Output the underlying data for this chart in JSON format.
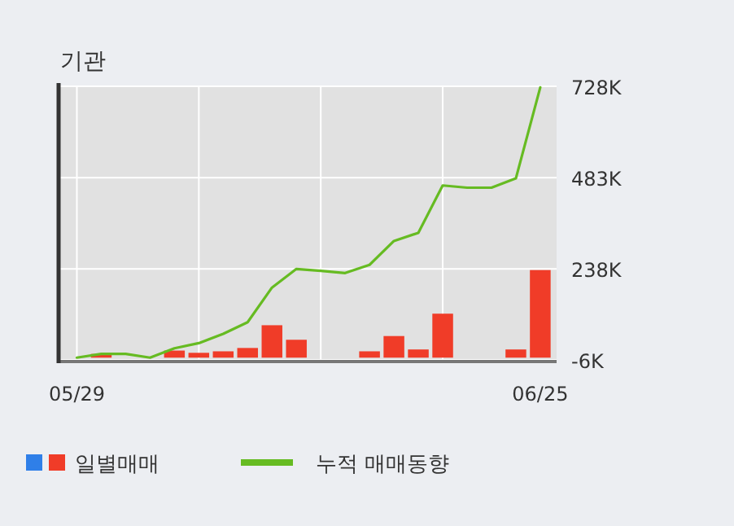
{
  "chart_data": {
    "type": "bar",
    "title": "기관",
    "categories": [
      "05/29",
      null,
      null,
      null,
      null,
      null,
      null,
      null,
      null,
      null,
      null,
      null,
      null,
      null,
      null,
      null,
      null,
      null,
      null,
      "06/25"
    ],
    "series": [
      {
        "name": "일별매매",
        "color": "#f03c28",
        "values": [
          null,
          10,
          null,
          null,
          19,
          13,
          17,
          26,
          87,
          48,
          null,
          null,
          17,
          58,
          22,
          118,
          null,
          null,
          22,
          235
        ]
      },
      {
        "name": "누적 매매동향",
        "type": "line",
        "color": "#66bb22",
        "values": [
          0,
          10,
          10,
          0,
          25,
          39,
          64,
          95,
          188,
          238,
          233,
          227,
          249,
          313,
          335,
          462,
          456,
          456,
          481,
          725
        ]
      }
    ],
    "ylim": [
      -6,
      728
    ],
    "yticks": [
      {
        "value": -6,
        "label": "-6K"
      },
      {
        "value": 238,
        "label": "238K"
      },
      {
        "value": 483,
        "label": "483K"
      },
      {
        "value": 728,
        "label": "728K"
      }
    ],
    "grid": true,
    "legend": "bottom"
  }
}
